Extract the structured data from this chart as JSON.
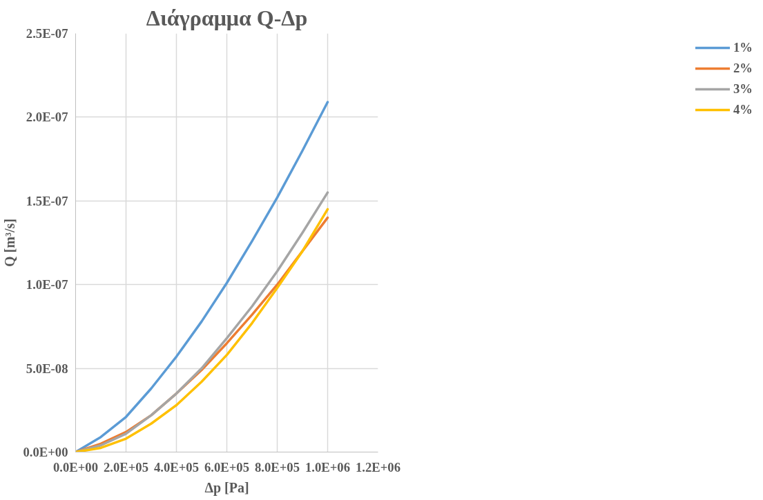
{
  "chart_data": {
    "type": "line",
    "title": "Διάγραμμα Q-Δp",
    "xlabel": "Δp [Pa]",
    "ylabel": "Q [m³/s]",
    "x": [
      0,
      100000,
      200000,
      300000,
      400000,
      500000,
      600000,
      700000,
      800000,
      900000,
      1000000
    ],
    "series": [
      {
        "name": "1%",
        "color": "#5b9bd5",
        "values": [
          0,
          9e-09,
          2.1e-08,
          3.8e-08,
          5.7e-08,
          7.8e-08,
          1.01e-07,
          1.26e-07,
          1.52e-07,
          1.8e-07,
          2.09e-07
        ]
      },
      {
        "name": "2%",
        "color": "#ed7d31",
        "values": [
          0,
          5e-09,
          1.2e-08,
          2.2e-08,
          3.5e-08,
          4.9e-08,
          6.5e-08,
          8.2e-08,
          1e-07,
          1.2e-07,
          1.4e-07
        ]
      },
      {
        "name": "3%",
        "color": "#a5a5a5",
        "values": [
          0,
          4e-09,
          1.1e-08,
          2.2e-08,
          3.5e-08,
          5e-08,
          6.8e-08,
          8.7e-08,
          1.08e-07,
          1.31e-07,
          1.55e-07
        ]
      },
      {
        "name": "4%",
        "color": "#ffc000",
        "values": [
          0,
          2.5e-09,
          8e-09,
          1.7e-08,
          2.8e-08,
          4.2e-08,
          5.8e-08,
          7.7e-08,
          9.8e-08,
          1.2e-07,
          1.45e-07
        ]
      }
    ],
    "xlim": [
      0,
      1200000
    ],
    "xticks": [
      {
        "value": 0,
        "label": "0.0E+00"
      },
      {
        "value": 200000,
        "label": "2.0E+05"
      },
      {
        "value": 400000,
        "label": "4.0E+05"
      },
      {
        "value": 600000,
        "label": "6.0E+05"
      },
      {
        "value": 800000,
        "label": "8.0E+05"
      },
      {
        "value": 1000000,
        "label": "1.0E+06"
      },
      {
        "value": 1200000,
        "label": "1.2E+06"
      }
    ],
    "ylim": [
      0,
      2.5e-07
    ],
    "yticks": [
      {
        "value": 0,
        "label": "0.0E+00"
      },
      {
        "value": 5e-08,
        "label": "5.0E-08"
      },
      {
        "value": 1e-07,
        "label": "1.0E-07"
      },
      {
        "value": 1.5e-07,
        "label": "1.5E-07"
      },
      {
        "value": 2e-07,
        "label": "2.0E-07"
      },
      {
        "value": 2.5e-07,
        "label": "2.5E-07"
      }
    ],
    "grid": true,
    "legend": "right",
    "marker": "none",
    "line_style": "solid"
  }
}
